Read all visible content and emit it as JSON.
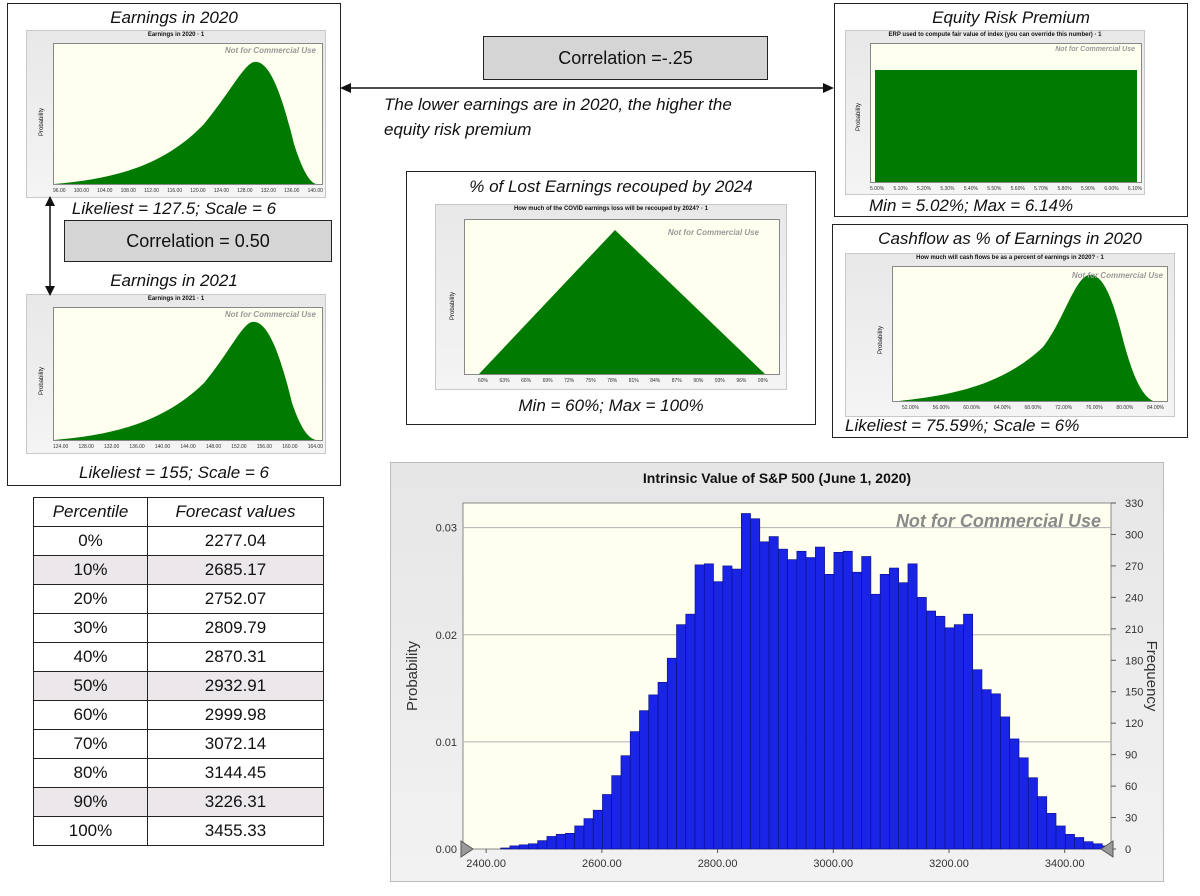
{
  "charts": {
    "earnings2020": {
      "panel_title": "Earnings in 2020",
      "mini_title": "Earnings in 2020 · 1",
      "ylabel": "Probability",
      "watermark": "Not for Commercial Use",
      "ticks": [
        "96.00",
        "100.00",
        "104.00",
        "108.00",
        "112.00",
        "116.00",
        "120.00",
        "124.00",
        "128.00",
        "132.00",
        "136.00",
        "140.00"
      ],
      "caption": "Likeliest = 127.5; Scale = 6"
    },
    "earnings2021": {
      "panel_title": "Earnings in 2021",
      "mini_title": "Earnings in 2021 · 1",
      "ylabel": "Probability",
      "watermark": "Not for Commercial Use",
      "ticks": [
        "124.00",
        "128.00",
        "132.00",
        "136.00",
        "140.00",
        "144.00",
        "148.00",
        "152.00",
        "156.00",
        "160.00",
        "164.00"
      ],
      "caption": "Likeliest = 155; Scale = 6"
    },
    "erp": {
      "panel_title": "Equity Risk Premium",
      "mini_title": "ERP used to compute fair value of index (you can override this number) · 1",
      "ylabel": "Probability",
      "watermark": "Not for Commercial Use",
      "ticks": [
        "5.00%",
        "5.10%",
        "5.20%",
        "5.30%",
        "5.40%",
        "5.50%",
        "5.60%",
        "5.70%",
        "5.80%",
        "5.90%",
        "6.00%",
        "6.10%"
      ],
      "caption": "Min = 5.02%;  Max = 6.14%"
    },
    "lost": {
      "panel_title": "% of Lost Earnings recouped by 2024",
      "mini_title": "How much of the COVID earnings loss will be recouped by 2024? · 1",
      "ylabel": "Probability",
      "watermark": "Not for Commercial Use",
      "ticks": [
        "60%",
        "63%",
        "66%",
        "69%",
        "72%",
        "75%",
        "78%",
        "81%",
        "84%",
        "87%",
        "90%",
        "93%",
        "96%",
        "99%"
      ],
      "caption": "Min = 60%;  Max = 100%"
    },
    "cashflow": {
      "panel_title": "Cashflow as % of Earnings in 2020",
      "mini_title": "How much will cash flows be as a percent of earnings in 2020? · 1",
      "ylabel": "Probability",
      "watermark": "Not for Commercial Use",
      "ticks": [
        "52.00%",
        "56.00%",
        "60.00%",
        "64.00%",
        "68.00%",
        "72.00%",
        "76.00%",
        "80.00%",
        "84.00%"
      ],
      "caption": "Likeliest = 75.59%; Scale = 6%"
    }
  },
  "correlations": {
    "top": "Correlation =-.25",
    "left": "Correlation = 0.50",
    "note_line1": "The lower earnings are in 2020, the higher the",
    "note_line2": "equity risk premium"
  },
  "percentile_table": {
    "headers": [
      "Percentile",
      "Forecast values"
    ],
    "rows": [
      [
        "0%",
        "2277.04"
      ],
      [
        "10%",
        "2685.17"
      ],
      [
        "20%",
        "2752.07"
      ],
      [
        "30%",
        "2809.79"
      ],
      [
        "40%",
        "2870.31"
      ],
      [
        "50%",
        "2932.91"
      ],
      [
        "60%",
        "2999.98"
      ],
      [
        "70%",
        "3072.14"
      ],
      [
        "80%",
        "3144.45"
      ],
      [
        "90%",
        "3226.31"
      ],
      [
        "100%",
        "3455.33"
      ]
    ]
  },
  "chart_data": {
    "type": "bar",
    "title": "Intrinsic Value of S&P 500 (June 1, 2020)",
    "xlabel": "",
    "ylabel": "Probability",
    "y2label": "Frequency",
    "watermark": "Not for Commercial Use",
    "xlim": [
      2360,
      3480
    ],
    "ylim": [
      0,
      0.0323
    ],
    "y2lim": [
      0,
      330
    ],
    "x_ticks": [
      2400,
      2600,
      2800,
      3000,
      3200,
      3400
    ],
    "x_tick_labels": [
      "2400.00",
      "2600.00",
      "2800.00",
      "3000.00",
      "3200.00",
      "3400.00"
    ],
    "y_ticks": [
      0,
      0.01,
      0.02,
      0.03
    ],
    "y_tick_labels": [
      "0.00",
      "0.01",
      "0.02",
      "0.03"
    ],
    "y2_ticks": [
      0,
      30,
      60,
      90,
      120,
      150,
      180,
      210,
      240,
      270,
      300,
      330
    ],
    "y2_tick_labels": [
      "0",
      "30",
      "60",
      "90",
      "120",
      "150",
      "180",
      "210",
      "240",
      "270",
      "300",
      "330"
    ],
    "bin_start": 2425,
    "bin_width": 16,
    "frequencies": [
      1,
      3,
      4,
      5,
      8,
      12,
      14,
      15,
      22,
      29,
      37,
      52,
      70,
      89,
      112,
      132,
      147,
      159,
      182,
      214,
      224,
      271,
      272,
      255,
      270,
      267,
      320,
      315,
      293,
      298,
      286,
      276,
      284,
      278,
      288,
      262,
      283,
      284,
      264,
      279,
      243,
      262,
      268,
      254,
      272,
      240,
      227,
      222,
      211,
      214,
      224,
      171,
      152,
      148,
      126,
      105,
      87,
      68,
      50,
      34,
      22,
      14,
      11,
      7,
      5,
      3
    ]
  }
}
